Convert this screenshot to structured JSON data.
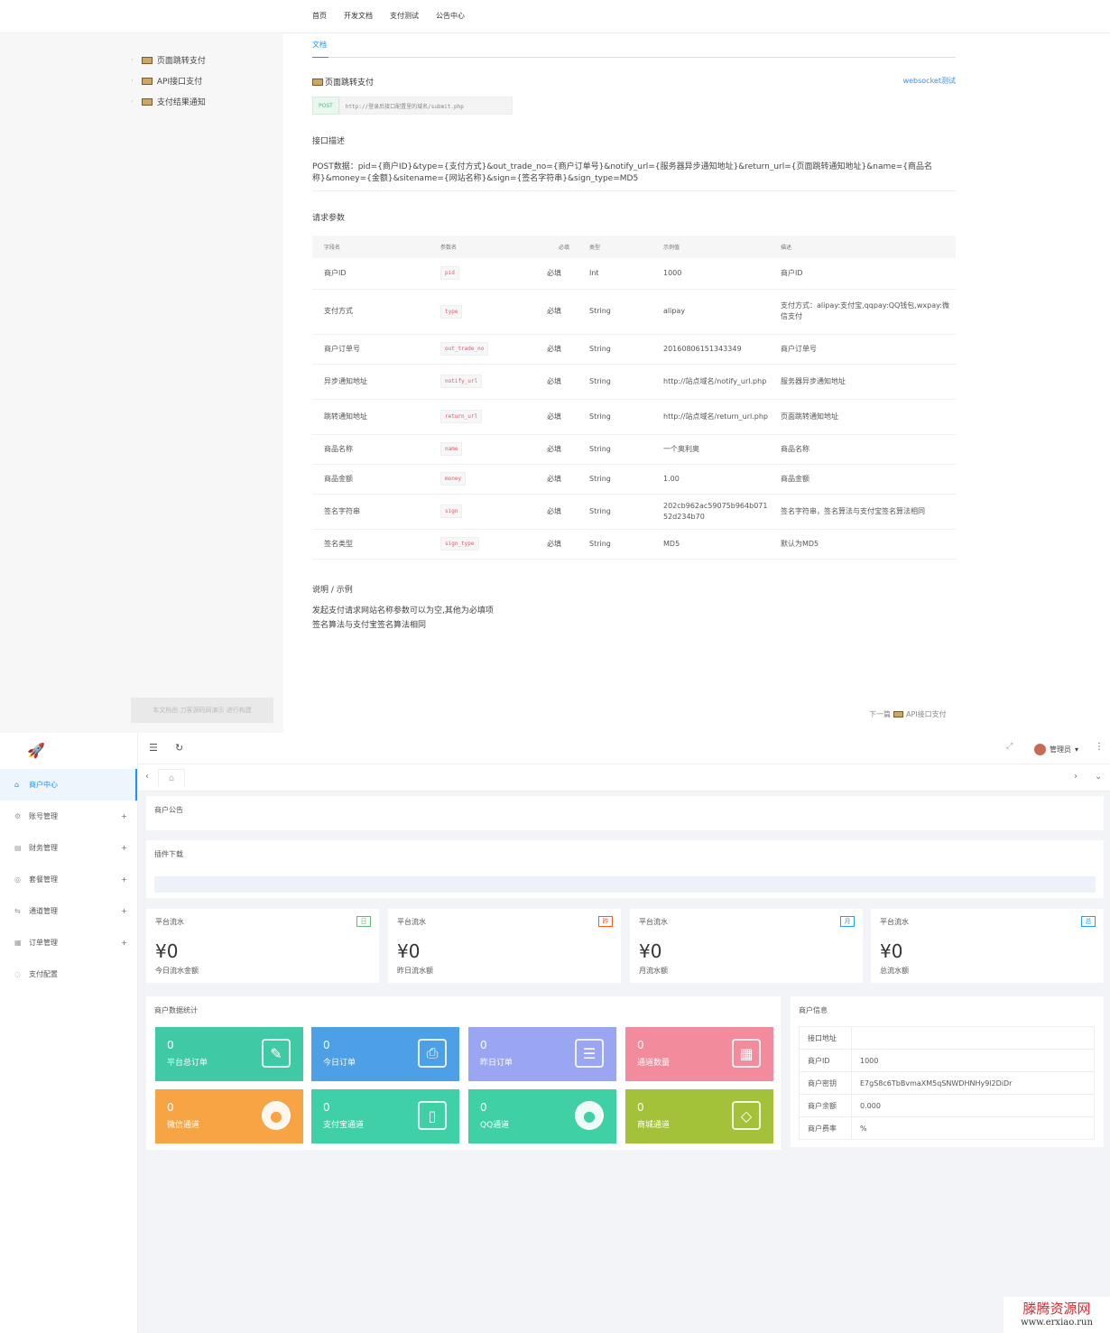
{
  "doc": {
    "nav": [
      "首页",
      "开发文档",
      "支付测试",
      "公告中心"
    ],
    "side_links": [
      "页面跳转支付",
      "API接口支付",
      "支付结果通知"
    ],
    "footer_btn": "本文档由 刀客源码网演示 进行构建",
    "tab": "文档",
    "heading": "页面跳转支付",
    "ws_link": "websocket测试",
    "method": "POST",
    "url": "http://登录后接口配置里的域名/submit.php",
    "desc_title": "接口描述",
    "post_data": "POST数据：pid={商户ID}&type={支付方式}&out_trade_no={商户订单号}&notify_url={服务器异步通知地址}&return_url={页面跳转通知地址}&name={商品名称}&money={金额}&sitename={网站名称}&sign={签名字符串}&sign_type=MD5",
    "params_title": "请求参数",
    "headers": [
      "字段名",
      "参数名",
      "必填",
      "类型",
      "示例值",
      "描述"
    ],
    "rows": [
      [
        "商户ID",
        "pid",
        "必填",
        "Int",
        "1000",
        "商户ID"
      ],
      [
        "支付方式",
        "type",
        "必填",
        "String",
        "alipay",
        "支付方式：alipay:支付宝,qqpay:QQ钱包,wxpay:微信支付"
      ],
      [
        "商户订单号",
        "out_trade_no",
        "必填",
        "String",
        "20160806151343349",
        "商户订单号"
      ],
      [
        "异步通知地址",
        "notify_url",
        "必填",
        "String",
        "http://站点域名/notify_url.php",
        "服务器异步通知地址"
      ],
      [
        "跳转通知地址",
        "return_url",
        "必填",
        "String",
        "http://站点域名/return_url.php",
        "页面跳转通知地址"
      ],
      [
        "商品名称",
        "name",
        "必填",
        "String",
        "一个奥利奥",
        "商品名称"
      ],
      [
        "商品金额",
        "money",
        "必填",
        "String",
        "1.00",
        "商品金额"
      ],
      [
        "签名字符串",
        "sign",
        "必填",
        "String",
        "202cb962ac59075b964b07152d234b70",
        "签名字符串，签名算法与支付宝签名算法相同"
      ],
      [
        "签名类型",
        "sign_type",
        "必填",
        "String",
        "MD5",
        "默认为MD5"
      ]
    ],
    "note_title": "说明 / 示例",
    "notes": [
      "发起支付请求网站名称参数可以为空,其他为必填项",
      "签名算法与支付宝签名算法相同"
    ],
    "next": "下一篇",
    "next_link": "API接口支付"
  },
  "admin": {
    "user": "管理员",
    "menu": [
      {
        "label": "商户中心",
        "icon": "home-icon",
        "active": true,
        "expandable": false
      },
      {
        "label": "账号管理",
        "icon": "gear-icon",
        "active": false,
        "expandable": true
      },
      {
        "label": "财务管理",
        "icon": "finance-icon",
        "active": false,
        "expandable": true
      },
      {
        "label": "套餐管理",
        "icon": "package-icon",
        "active": false,
        "expandable": true
      },
      {
        "label": "通道管理",
        "icon": "channel-icon",
        "active": false,
        "expandable": true
      },
      {
        "label": "订单管理",
        "icon": "order-icon",
        "active": false,
        "expandable": true
      },
      {
        "label": "支付配置",
        "icon": "config-icon",
        "active": false,
        "expandable": false
      }
    ],
    "notice_title": "商户公告",
    "plugin_title": "插件下载",
    "flows": [
      {
        "title": "平台流水",
        "badge": "日",
        "badge_color": "#5fb878",
        "amount": "¥0",
        "label": "今日流水金额"
      },
      {
        "title": "平台流水",
        "badge": "昨",
        "badge_color": "#ff5722",
        "amount": "¥0",
        "label": "昨日流水额"
      },
      {
        "title": "平台流水",
        "badge": "月",
        "badge_color": "#1e9fff",
        "amount": "¥0",
        "label": "月流水额"
      },
      {
        "title": "平台流水",
        "badge": "总",
        "badge_color": "#1e9fff",
        "amount": "¥0",
        "label": "总流水额"
      }
    ],
    "stats_title": "商户数据统计",
    "tiles": [
      {
        "value": "0",
        "label": "平台总订单",
        "color": "#3fc9a5",
        "icon": "edit-icon"
      },
      {
        "value": "0",
        "label": "今日订单",
        "color": "#4d9fe6",
        "icon": "printer-icon"
      },
      {
        "value": "0",
        "label": "昨日订单",
        "color": "#9aa6f2",
        "icon": "document-icon"
      },
      {
        "value": "0",
        "label": "通道数量",
        "color": "#f28b9b",
        "icon": "calendar-icon"
      },
      {
        "value": "0",
        "label": "微信通道",
        "color": "#f7a445",
        "icon": "wechat-icon"
      },
      {
        "value": "0",
        "label": "支付宝通道",
        "color": "#3fd0a8",
        "icon": "tablet-icon"
      },
      {
        "value": "0",
        "label": "QQ通道",
        "color": "#40d0a6",
        "icon": "qq-icon"
      },
      {
        "value": "0",
        "label": "商城通道",
        "color": "#a3c23a",
        "icon": "cube-icon"
      }
    ],
    "info_title": "商户信息",
    "info": [
      [
        "接口地址",
        ""
      ],
      [
        "商户ID",
        "1000"
      ],
      [
        "商户密钥",
        "E7gS8c6TbBvmaXM5qSNWDHNHy9l2DiDr"
      ],
      [
        "商户余额",
        "0.000"
      ],
      [
        "商户费率",
        "%"
      ]
    ]
  },
  "watermark": {
    "line1": "滕腾资源网",
    "line2": "www.erxiao.run"
  }
}
